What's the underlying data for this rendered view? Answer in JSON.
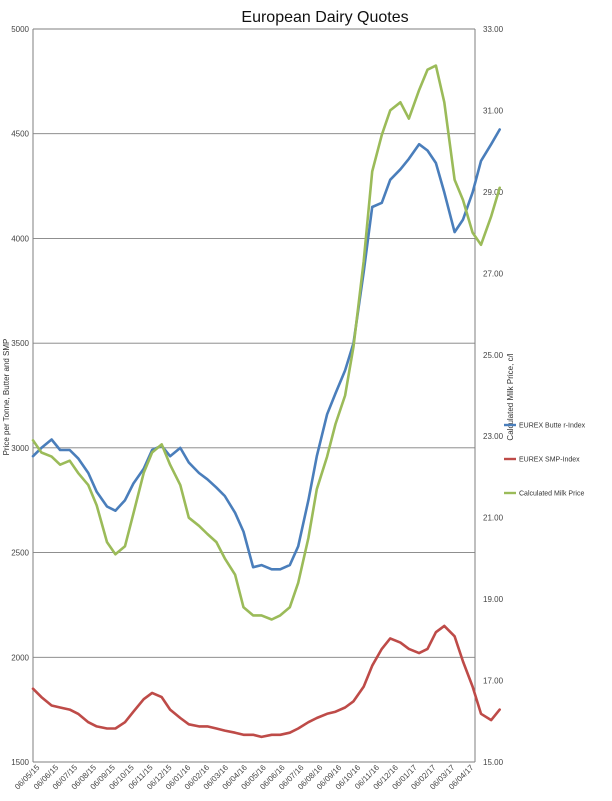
{
  "chart_data": {
    "type": "line",
    "title": "European Dairy Quotes",
    "ylabel": "Price per Tonne, Butter and SMP",
    "y2label": "Calculated Milk Price, c/l",
    "ylim": [
      1500,
      5000
    ],
    "y2lim": [
      15.0,
      33.0
    ],
    "yticks": [
      "5000",
      "4500",
      "4000",
      "3500",
      "3000",
      "2500",
      "2000",
      "1500"
    ],
    "y2ticks": [
      "33.00",
      "31.00",
      "29.00",
      "27.00",
      "25.00",
      "23.00",
      "21.00",
      "19.00",
      "17.00",
      "15.00"
    ],
    "grid": "horizontal",
    "legend_position": "right",
    "x_start": "2015-05-06",
    "x_end": "2017-05-10",
    "x_tick_labels": [
      "06/05/15",
      "06/06/15",
      "06/07/15",
      "06/08/15",
      "06/09/15",
      "06/10/15",
      "06/11/15",
      "06/12/15",
      "06/01/16",
      "06/02/16",
      "06/03/16",
      "06/04/16",
      "06/05/16",
      "06/06/16",
      "06/07/16",
      "06/08/16",
      "06/09/16",
      "06/10/16",
      "06/11/16",
      "06/12/16",
      "06/01/17",
      "06/02/17",
      "06/03/17",
      "06/04/17"
    ],
    "series": [
      {
        "name": "EUREX Butte r-Index",
        "axis": "left",
        "color": "#4a7ebb",
        "points": [
          [
            "2015-05-06",
            2960
          ],
          [
            "2015-05-20",
            3000
          ],
          [
            "2015-06-06",
            3040
          ],
          [
            "2015-06-20",
            2990
          ],
          [
            "2015-07-06",
            2990
          ],
          [
            "2015-07-20",
            2950
          ],
          [
            "2015-08-06",
            2880
          ],
          [
            "2015-08-20",
            2790
          ],
          [
            "2015-09-06",
            2720
          ],
          [
            "2015-09-20",
            2700
          ],
          [
            "2015-10-06",
            2750
          ],
          [
            "2015-10-20",
            2830
          ],
          [
            "2015-11-06",
            2900
          ],
          [
            "2015-11-20",
            2990
          ],
          [
            "2015-12-06",
            3010
          ],
          [
            "2015-12-20",
            2960
          ],
          [
            "2016-01-06",
            3000
          ],
          [
            "2016-01-20",
            2930
          ],
          [
            "2016-02-06",
            2880
          ],
          [
            "2016-02-20",
            2850
          ],
          [
            "2016-03-06",
            2810
          ],
          [
            "2016-03-20",
            2770
          ],
          [
            "2016-04-06",
            2690
          ],
          [
            "2016-04-20",
            2600
          ],
          [
            "2016-05-06",
            2430
          ],
          [
            "2016-05-20",
            2440
          ],
          [
            "2016-06-06",
            2420
          ],
          [
            "2016-06-20",
            2420
          ],
          [
            "2016-07-06",
            2440
          ],
          [
            "2016-07-20",
            2530
          ],
          [
            "2016-08-06",
            2750
          ],
          [
            "2016-08-20",
            2960
          ],
          [
            "2016-09-06",
            3160
          ],
          [
            "2016-09-20",
            3260
          ],
          [
            "2016-10-06",
            3370
          ],
          [
            "2016-10-20",
            3500
          ],
          [
            "2016-11-06",
            3840
          ],
          [
            "2016-11-20",
            4150
          ],
          [
            "2016-12-06",
            4170
          ],
          [
            "2016-12-20",
            4280
          ],
          [
            "2017-01-06",
            4330
          ],
          [
            "2017-01-20",
            4380
          ],
          [
            "2017-02-06",
            4450
          ],
          [
            "2017-02-20",
            4420
          ],
          [
            "2017-03-06",
            4360
          ],
          [
            "2017-03-20",
            4220
          ],
          [
            "2017-04-06",
            4030
          ],
          [
            "2017-04-20",
            4090
          ],
          [
            "2017-05-06",
            4220
          ],
          [
            "2017-05-20",
            4370
          ],
          [
            "2017-06-06",
            4450
          ],
          [
            "2017-06-20",
            4520
          ]
        ]
      },
      {
        "name": "EUREX SMP-Index",
        "axis": "left",
        "color": "#be4b48",
        "points": [
          [
            "2015-05-06",
            1850
          ],
          [
            "2015-05-20",
            1810
          ],
          [
            "2015-06-06",
            1770
          ],
          [
            "2015-06-20",
            1760
          ],
          [
            "2015-07-06",
            1750
          ],
          [
            "2015-07-20",
            1730
          ],
          [
            "2015-08-06",
            1690
          ],
          [
            "2015-08-20",
            1670
          ],
          [
            "2015-09-06",
            1660
          ],
          [
            "2015-09-20",
            1660
          ],
          [
            "2015-10-06",
            1690
          ],
          [
            "2015-10-20",
            1740
          ],
          [
            "2015-11-06",
            1800
          ],
          [
            "2015-11-20",
            1830
          ],
          [
            "2015-12-06",
            1810
          ],
          [
            "2015-12-20",
            1750
          ],
          [
            "2016-01-06",
            1710
          ],
          [
            "2016-01-20",
            1680
          ],
          [
            "2016-02-06",
            1670
          ],
          [
            "2016-02-20",
            1670
          ],
          [
            "2016-03-06",
            1660
          ],
          [
            "2016-03-20",
            1650
          ],
          [
            "2016-04-06",
            1640
          ],
          [
            "2016-04-20",
            1630
          ],
          [
            "2016-05-06",
            1630
          ],
          [
            "2016-05-20",
            1620
          ],
          [
            "2016-06-06",
            1630
          ],
          [
            "2016-06-20",
            1630
          ],
          [
            "2016-07-06",
            1640
          ],
          [
            "2016-07-20",
            1660
          ],
          [
            "2016-08-06",
            1690
          ],
          [
            "2016-08-20",
            1710
          ],
          [
            "2016-09-06",
            1730
          ],
          [
            "2016-09-20",
            1740
          ],
          [
            "2016-10-06",
            1760
          ],
          [
            "2016-10-20",
            1790
          ],
          [
            "2016-11-06",
            1860
          ],
          [
            "2016-11-20",
            1960
          ],
          [
            "2016-12-06",
            2040
          ],
          [
            "2016-12-20",
            2090
          ],
          [
            "2017-01-06",
            2070
          ],
          [
            "2017-01-20",
            2040
          ],
          [
            "2017-02-06",
            2020
          ],
          [
            "2017-02-20",
            2040
          ],
          [
            "2017-03-06",
            2120
          ],
          [
            "2017-03-20",
            2150
          ],
          [
            "2017-04-06",
            2100
          ],
          [
            "2017-04-20",
            1980
          ],
          [
            "2017-05-06",
            1860
          ],
          [
            "2017-05-20",
            1730
          ],
          [
            "2017-06-06",
            1700
          ],
          [
            "2017-06-20",
            1750
          ]
        ]
      },
      {
        "name": "Calculated Milk Price",
        "axis": "right",
        "color": "#9bbb59",
        "points": [
          [
            "2015-05-06",
            22.9
          ],
          [
            "2015-05-20",
            22.6
          ],
          [
            "2015-06-06",
            22.5
          ],
          [
            "2015-06-20",
            22.3
          ],
          [
            "2015-07-06",
            22.4
          ],
          [
            "2015-07-20",
            22.1
          ],
          [
            "2015-08-06",
            21.8
          ],
          [
            "2015-08-20",
            21.3
          ],
          [
            "2015-09-06",
            20.4
          ],
          [
            "2015-09-20",
            20.1
          ],
          [
            "2015-10-06",
            20.3
          ],
          [
            "2015-10-20",
            21.1
          ],
          [
            "2015-11-06",
            22.1
          ],
          [
            "2015-11-20",
            22.6
          ],
          [
            "2015-12-06",
            22.8
          ],
          [
            "2015-12-20",
            22.3
          ],
          [
            "2016-01-06",
            21.8
          ],
          [
            "2016-01-20",
            21.0
          ],
          [
            "2016-02-06",
            20.8
          ],
          [
            "2016-02-20",
            20.6
          ],
          [
            "2016-03-06",
            20.4
          ],
          [
            "2016-03-20",
            20.0
          ],
          [
            "2016-04-06",
            19.6
          ],
          [
            "2016-04-20",
            18.8
          ],
          [
            "2016-05-06",
            18.6
          ],
          [
            "2016-05-20",
            18.6
          ],
          [
            "2016-06-06",
            18.5
          ],
          [
            "2016-06-20",
            18.6
          ],
          [
            "2016-07-06",
            18.8
          ],
          [
            "2016-07-20",
            19.4
          ],
          [
            "2016-08-06",
            20.5
          ],
          [
            "2016-08-20",
            21.7
          ],
          [
            "2016-09-06",
            22.5
          ],
          [
            "2016-09-20",
            23.3
          ],
          [
            "2016-10-06",
            24.0
          ],
          [
            "2016-10-20",
            25.2
          ],
          [
            "2016-11-06",
            27.3
          ],
          [
            "2016-11-20",
            29.5
          ],
          [
            "2016-12-06",
            30.4
          ],
          [
            "2016-12-20",
            31.0
          ],
          [
            "2017-01-06",
            31.2
          ],
          [
            "2017-01-20",
            30.8
          ],
          [
            "2017-02-06",
            31.5
          ],
          [
            "2017-02-20",
            32.0
          ],
          [
            "2017-03-06",
            32.1
          ],
          [
            "2017-03-20",
            31.2
          ],
          [
            "2017-04-06",
            29.3
          ],
          [
            "2017-04-20",
            28.8
          ],
          [
            "2017-05-06",
            28.0
          ],
          [
            "2017-05-20",
            27.7
          ],
          [
            "2017-06-06",
            28.4
          ],
          [
            "2017-06-20",
            29.1
          ]
        ]
      }
    ]
  }
}
